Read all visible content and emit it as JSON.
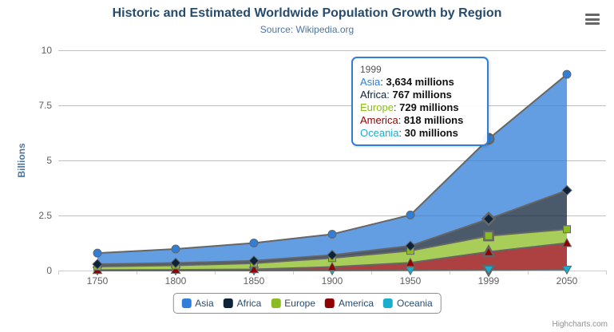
{
  "header": {
    "title": "Historic and Estimated Worldwide Population Growth by Region",
    "subtitle": "Source: Wikipedia.org"
  },
  "chart_data": {
    "type": "area",
    "stacking": "normal",
    "title": "Historic and Estimated Worldwide Population Growth by Region",
    "subtitle": "Source: Wikipedia.org",
    "categories": [
      "1750",
      "1800",
      "1850",
      "1900",
      "1950",
      "1999",
      "2050"
    ],
    "yticks": [
      "0",
      "2.5",
      "5",
      "7.5",
      "10"
    ],
    "ylim": [
      0,
      10
    ],
    "ylabel": "Billions",
    "values_unit": "millions",
    "grid_on": true,
    "grid_color": "#C0C0C0",
    "axis_line_color": "#C0D0E0",
    "line_color": "#666666",
    "fill_opacity": 0.75,
    "hover_index": 5,
    "legend_position": "bottom-center",
    "series": [
      {
        "name": "Asia",
        "color": "#2f7ed8",
        "marker": "circle",
        "values": [
          502,
          635,
          809,
          947,
          1402,
          3634,
          5268
        ]
      },
      {
        "name": "Africa",
        "color": "#0d233a",
        "marker": "diamond",
        "values": [
          106,
          107,
          111,
          133,
          221,
          767,
          1766
        ]
      },
      {
        "name": "Europe",
        "color": "#8bbc21",
        "marker": "square",
        "values": [
          163,
          203,
          276,
          408,
          547,
          729,
          628
        ]
      },
      {
        "name": "America",
        "color": "#910000",
        "marker": "triangle",
        "values": [
          18,
          31,
          54,
          156,
          339,
          818,
          1201
        ]
      },
      {
        "name": "Oceania",
        "color": "#1aadce",
        "marker": "triangle-down",
        "values": [
          2,
          2,
          2,
          6,
          13,
          30,
          46
        ]
      }
    ]
  },
  "tooltip": {
    "header": "1999",
    "rows": [
      {
        "label": "Asia",
        "value": "3,634 millions"
      },
      {
        "label": "Africa",
        "value": "767 millions"
      },
      {
        "label": "Europe",
        "value": "729 millions"
      },
      {
        "label": "America",
        "value": "818 millions"
      },
      {
        "label": "Oceania",
        "value": "30 millions"
      }
    ]
  },
  "credits": "Highcharts.com"
}
